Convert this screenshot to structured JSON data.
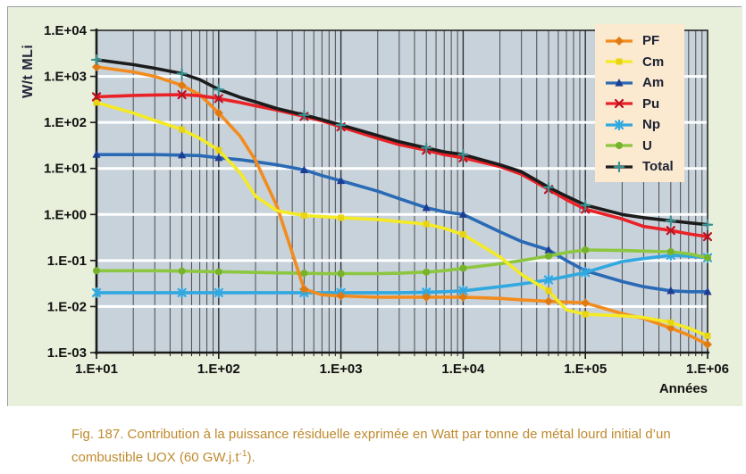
{
  "figure": {
    "caption": {
      "prefix": "Fig. 187. Contribution à la puissance résiduelle exprimée en Watt par tonne de métal lourd initial d’un combustible UOX (60 GW.j.t",
      "sup": "-1",
      "suffix": ")."
    }
  },
  "colors": {
    "figure_bg": "#e8efda",
    "plot_bg": "#c7d2db",
    "legend_bg": "#fbe9d0",
    "caption": "#bf8a2e",
    "axis_text": "#111111",
    "y_title": "#23233a",
    "legend_text": "#1b2233",
    "grid_minor": "#4b4b4b",
    "grid_major": "#2f2f2f",
    "decade_line": "#ffffff",
    "axis_line": "#1a1a1a"
  },
  "chart_data": {
    "type": "line",
    "x_scale": "log",
    "y_scale": "log",
    "title": "",
    "xlabel": "Années",
    "ylabel": "W/t MLi",
    "xlim": [
      10,
      1000000
    ],
    "ylim": [
      0.001,
      10000
    ],
    "grid": true,
    "legend_position": "top-right",
    "x_ticks": [
      "1.E+01",
      "1.E+02",
      "1.E+03",
      "1.E+04",
      "1.E+05",
      "1.E+06"
    ],
    "y_ticks": [
      "1.E+04",
      "1.E+03",
      "1.E+02",
      "1.E+01",
      "1.E+00",
      "1.E-01",
      "1.E-02",
      "1.E-03"
    ],
    "x": [
      10,
      20,
      30,
      50,
      70,
      100,
      150,
      200,
      300,
      500,
      700,
      1000,
      2000,
      3000,
      5000,
      7000,
      10000,
      20000,
      30000,
      50000,
      70000,
      100000,
      200000,
      300000,
      500000,
      700000,
      1000000
    ],
    "marker_x": [
      10,
      50,
      100,
      500,
      1000,
      5000,
      10000,
      50000,
      100000,
      500000,
      1000000
    ],
    "draw_order": [
      2,
      4,
      5,
      0,
      1,
      3,
      6
    ],
    "series": [
      {
        "name": "PF",
        "color": "#f28c1e",
        "marker_color": "#e07b12",
        "marker": "diamond",
        "values": [
          1600,
          1250,
          1000,
          640,
          400,
          160,
          50,
          15,
          1.5,
          0.024,
          0.018,
          0.017,
          0.016,
          0.016,
          0.016,
          0.016,
          0.016,
          0.015,
          0.014,
          0.013,
          0.0125,
          0.012,
          0.007,
          0.0055,
          0.0034,
          0.0024,
          0.0015
        ]
      },
      {
        "name": "Cm",
        "color": "#f4ea25",
        "marker_color": "#e8d415",
        "marker": "square",
        "values": [
          270,
          160,
          110,
          70,
          45,
          25,
          8,
          2.5,
          1.2,
          0.95,
          0.9,
          0.85,
          0.78,
          0.7,
          0.62,
          0.5,
          0.37,
          0.12,
          0.05,
          0.022,
          0.0085,
          0.0068,
          0.0063,
          0.0058,
          0.0045,
          0.0034,
          0.0023
        ]
      },
      {
        "name": "Am",
        "color": "#2a6ab5",
        "marker_color": "#1d3d94",
        "marker": "triangle",
        "values": [
          20,
          20,
          20,
          19.5,
          19,
          17,
          15.5,
          14,
          12,
          9.3,
          7.0,
          5.4,
          3.2,
          2.2,
          1.4,
          1.15,
          1.0,
          0.42,
          0.26,
          0.17,
          0.1,
          0.06,
          0.035,
          0.027,
          0.022,
          0.021,
          0.021
        ]
      },
      {
        "name": "Pu",
        "color": "#ea2227",
        "marker_color": "#c01022",
        "marker": "x",
        "values": [
          360,
          385,
          395,
          400,
          380,
          330,
          270,
          230,
          185,
          135,
          108,
          80,
          45,
          33,
          25,
          20,
          17,
          11,
          7.5,
          3.5,
          2.1,
          1.3,
          0.8,
          0.55,
          0.45,
          0.38,
          0.33
        ]
      },
      {
        "name": "Np",
        "color": "#31a8e0",
        "marker_color": "#31a8e0",
        "marker": "star",
        "values": [
          0.02,
          0.02,
          0.02,
          0.02,
          0.02,
          0.02,
          0.02,
          0.02,
          0.02,
          0.02,
          0.02,
          0.02,
          0.02,
          0.02,
          0.0205,
          0.021,
          0.022,
          0.027,
          0.031,
          0.038,
          0.045,
          0.055,
          0.095,
          0.11,
          0.13,
          0.125,
          0.115
        ]
      },
      {
        "name": "U",
        "color": "#8dc63f",
        "marker_color": "#76b32a",
        "marker": "circle",
        "values": [
          0.06,
          0.06,
          0.06,
          0.059,
          0.058,
          0.057,
          0.056,
          0.055,
          0.054,
          0.053,
          0.052,
          0.052,
          0.052,
          0.053,
          0.056,
          0.06,
          0.068,
          0.085,
          0.1,
          0.125,
          0.15,
          0.17,
          0.165,
          0.16,
          0.155,
          0.14,
          0.115
        ]
      },
      {
        "name": "Total",
        "color": "#1c1c1c",
        "marker_color": "#3a9393",
        "marker": "plus",
        "values": [
          2300,
          1800,
          1500,
          1150,
          850,
          520,
          350,
          280,
          200,
          145,
          115,
          88,
          52,
          38,
          28,
          23,
          20,
          12,
          8.5,
          3.9,
          2.5,
          1.6,
          1.0,
          0.85,
          0.73,
          0.66,
          0.6
        ]
      }
    ]
  }
}
